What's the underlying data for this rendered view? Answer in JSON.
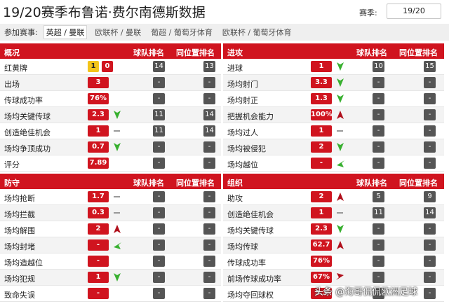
{
  "header": {
    "title": "19/20赛季布鲁诺·费尔南德斯数据",
    "season_label": "赛季:",
    "season_value": "19/20"
  },
  "filters": {
    "label": "参加赛事:",
    "options": [
      "英超 / 曼联",
      "欧联杯 / 曼联",
      "葡超 / 葡萄牙体育",
      "欧联杯 / 葡萄牙体育"
    ]
  },
  "panels": [
    {
      "title": "概况",
      "col1": "球队排名",
      "col2": "同位置排名",
      "rows": [
        {
          "name": "红黄牌",
          "value": "1",
          "value2": "0",
          "team_rank": "14",
          "pos_rank": "13",
          "trend": "none"
        },
        {
          "name": "出场",
          "value": "3",
          "team_rank": "-",
          "pos_rank": "-",
          "trend": "none"
        },
        {
          "name": "传球成功率",
          "value": "76%",
          "team_rank": "-",
          "pos_rank": "-",
          "trend": "none"
        },
        {
          "name": "场均关键传球",
          "value": "2.3",
          "team_rank": "11",
          "pos_rank": "14",
          "trend": "down"
        },
        {
          "name": "创造绝佳机会",
          "value": "1",
          "team_rank": "11",
          "pos_rank": "14",
          "trend": "flat"
        },
        {
          "name": "场均争顶成功",
          "value": "0.7",
          "team_rank": "-",
          "pos_rank": "-",
          "trend": "down"
        },
        {
          "name": "评分",
          "value": "7.89",
          "team_rank": "-",
          "pos_rank": "-",
          "trend": "none"
        }
      ]
    },
    {
      "title": "进攻",
      "col1": "球队排名",
      "col2": "同位置排名",
      "rows": [
        {
          "name": "进球",
          "value": "1",
          "team_rank": "10",
          "pos_rank": "15",
          "trend": "down"
        },
        {
          "name": "场均射门",
          "value": "3.3",
          "team_rank": "-",
          "pos_rank": "-",
          "trend": "down"
        },
        {
          "name": "场均射正",
          "value": "1.3",
          "team_rank": "-",
          "pos_rank": "-",
          "trend": "down"
        },
        {
          "name": "把握机会能力",
          "value": "100%",
          "team_rank": "-",
          "pos_rank": "-",
          "trend": "up"
        },
        {
          "name": "场均过人",
          "value": "1",
          "team_rank": "-",
          "pos_rank": "-",
          "trend": "flat"
        },
        {
          "name": "场均被侵犯",
          "value": "2",
          "team_rank": "-",
          "pos_rank": "-",
          "trend": "down"
        },
        {
          "name": "场均越位",
          "value": "-",
          "team_rank": "-",
          "pos_rank": "-",
          "trend": "downleft"
        }
      ]
    },
    {
      "title": "防守",
      "col1": "球队排名",
      "col2": "同位置排名",
      "rows": [
        {
          "name": "场均抢断",
          "value": "1.7",
          "team_rank": "-",
          "pos_rank": "-",
          "trend": "flat"
        },
        {
          "name": "场均拦截",
          "value": "0.3",
          "team_rank": "-",
          "pos_rank": "-",
          "trend": "flat"
        },
        {
          "name": "场均解围",
          "value": "2",
          "team_rank": "-",
          "pos_rank": "-",
          "trend": "up"
        },
        {
          "name": "场均封堵",
          "value": "-",
          "team_rank": "-",
          "pos_rank": "-",
          "trend": "downleft"
        },
        {
          "name": "场均造越位",
          "value": "-",
          "team_rank": "-",
          "pos_rank": "-",
          "trend": "none"
        },
        {
          "name": "场均犯规",
          "value": "1",
          "team_rank": "-",
          "pos_rank": "-",
          "trend": "down"
        },
        {
          "name": "致命失误",
          "value": "-",
          "team_rank": "-",
          "pos_rank": "-",
          "trend": "none"
        }
      ]
    },
    {
      "title": "组织",
      "col1": "球队排名",
      "col2": "同位置排名",
      "rows": [
        {
          "name": "助攻",
          "value": "2",
          "team_rank": "5",
          "pos_rank": "9",
          "trend": "up"
        },
        {
          "name": "创造绝佳机会",
          "value": "1",
          "team_rank": "11",
          "pos_rank": "14",
          "trend": "flat"
        },
        {
          "name": "场均关键传球",
          "value": "2.3",
          "team_rank": "-",
          "pos_rank": "-",
          "trend": "down"
        },
        {
          "name": "场均传球",
          "value": "62.7",
          "team_rank": "-",
          "pos_rank": "-",
          "trend": "up"
        },
        {
          "name": "传球成功率",
          "value": "76%",
          "team_rank": "-",
          "pos_rank": "-",
          "trend": "none"
        },
        {
          "name": "前场传球成功率",
          "value": "67%",
          "team_rank": "-",
          "pos_rank": "-",
          "trend": "upright"
        },
        {
          "name": "场均夺回球权",
          "value": "5.3",
          "team_rank": "-",
          "pos_rank": "-",
          "trend": "none"
        }
      ]
    }
  ],
  "watermark": "头条 @海哥侃侃欧洲足球",
  "colors": {
    "accent": "#d0141f",
    "rank_bg": "#555555",
    "up": "#b0101c",
    "down": "#38b030",
    "flat": "#999999",
    "yellow_card": "#f3c41a"
  }
}
